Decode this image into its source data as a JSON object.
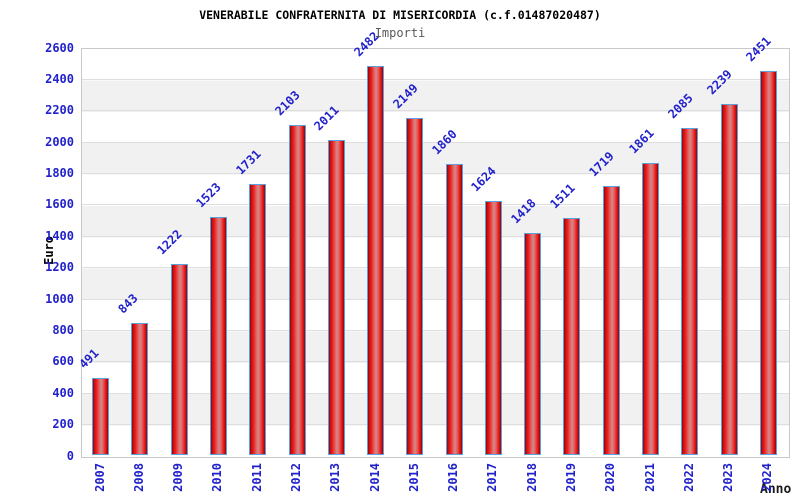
{
  "chart_data": {
    "type": "bar",
    "title": "VENERABILE CONFRATERNITA DI MISERICORDIA (c.f.01487020487)",
    "subtitle": "Importi",
    "xlabel": "Anno",
    "ylabel": "Euro",
    "categories": [
      "2007",
      "2008",
      "2009",
      "2010",
      "2011",
      "2012",
      "2013",
      "2014",
      "2015",
      "2016",
      "2017",
      "2018",
      "2019",
      "2020",
      "2021",
      "2022",
      "2023",
      "2024"
    ],
    "values": [
      491,
      843,
      1222,
      1523,
      1731,
      2103,
      2011,
      2482,
      2149,
      1860,
      1624,
      1418,
      1511,
      1719,
      1861,
      2085,
      2239,
      2451
    ],
    "ylim": [
      0,
      2600
    ],
    "y_ticks": [
      0,
      200,
      400,
      600,
      800,
      1000,
      1200,
      1400,
      1600,
      1800,
      2000,
      2200,
      2400,
      2600
    ],
    "grid": "horizontal-bands-alternating",
    "legend": "none",
    "colors": {
      "bar_fill": "#ee2020",
      "bar_edge_dark": "#8d0606",
      "bar_highlight": "#cd8b8b",
      "bar_border": "#5da0e0",
      "tick_text": "#2222cc",
      "value_text": "#2222cc",
      "title_text": "#000000",
      "subtitle_text": "#5a5a5a",
      "band_gray": "#f1f1f1",
      "gridline": "#dedede"
    }
  }
}
